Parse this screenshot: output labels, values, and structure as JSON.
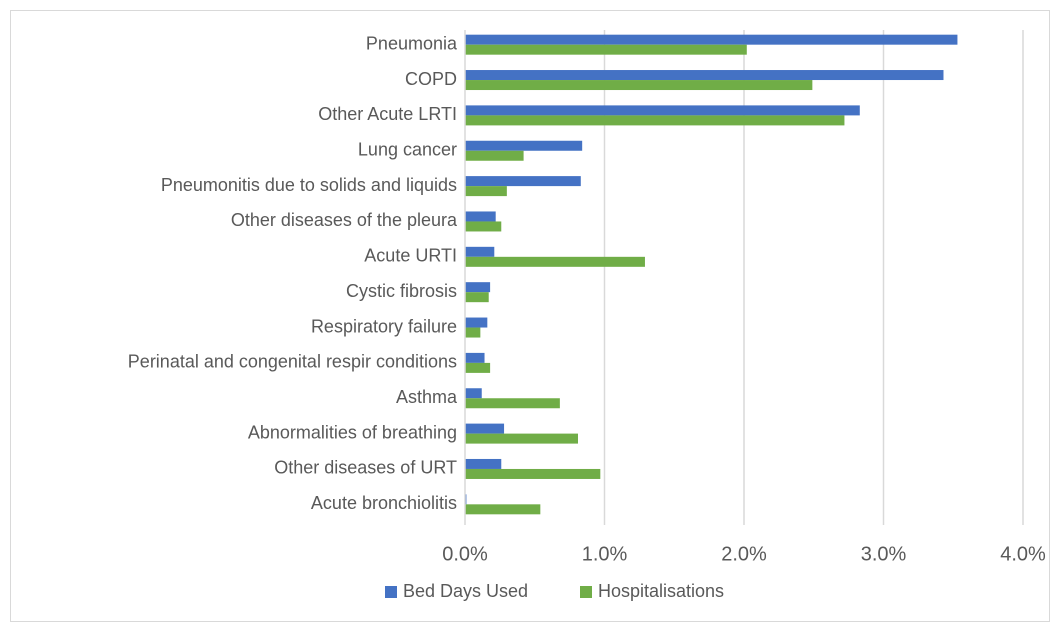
{
  "chart_data": {
    "type": "bar",
    "orientation": "horizontal",
    "categories": [
      "Pneumonia",
      "COPD",
      "Other Acute LRTI",
      "Lung cancer",
      "Pneumonitis due to solids and liquids",
      "Other diseases of the pleura",
      "Acute URTI",
      "Cystic fibrosis",
      "Respiratory failure",
      "Perinatal and congenital respir conditions",
      "Asthma",
      "Abnormalities of breathing",
      "Other diseases of URT",
      "Acute bronchiolitis"
    ],
    "series": [
      {
        "name": "Bed Days Used",
        "color": "#4472c4",
        "values": [
          3.53,
          3.43,
          2.83,
          0.84,
          0.83,
          0.22,
          0.21,
          0.18,
          0.16,
          0.14,
          0.12,
          0.28,
          0.26,
          0.01
        ]
      },
      {
        "name": "Hospitalisations",
        "color": "#70ad47",
        "values": [
          2.02,
          2.49,
          2.72,
          0.42,
          0.3,
          0.26,
          1.29,
          0.17,
          0.11,
          0.18,
          0.68,
          0.81,
          0.97,
          0.54
        ]
      }
    ],
    "xlim": [
      0,
      4
    ],
    "xticks": [
      {
        "value": 0,
        "label": "0.0%"
      },
      {
        "value": 1,
        "label": "1.0%"
      },
      {
        "value": 2,
        "label": "2.0%"
      },
      {
        "value": 3,
        "label": "3.0%"
      },
      {
        "value": 4,
        "label": "4.0%"
      }
    ],
    "grid": true,
    "legend": "bottom"
  }
}
